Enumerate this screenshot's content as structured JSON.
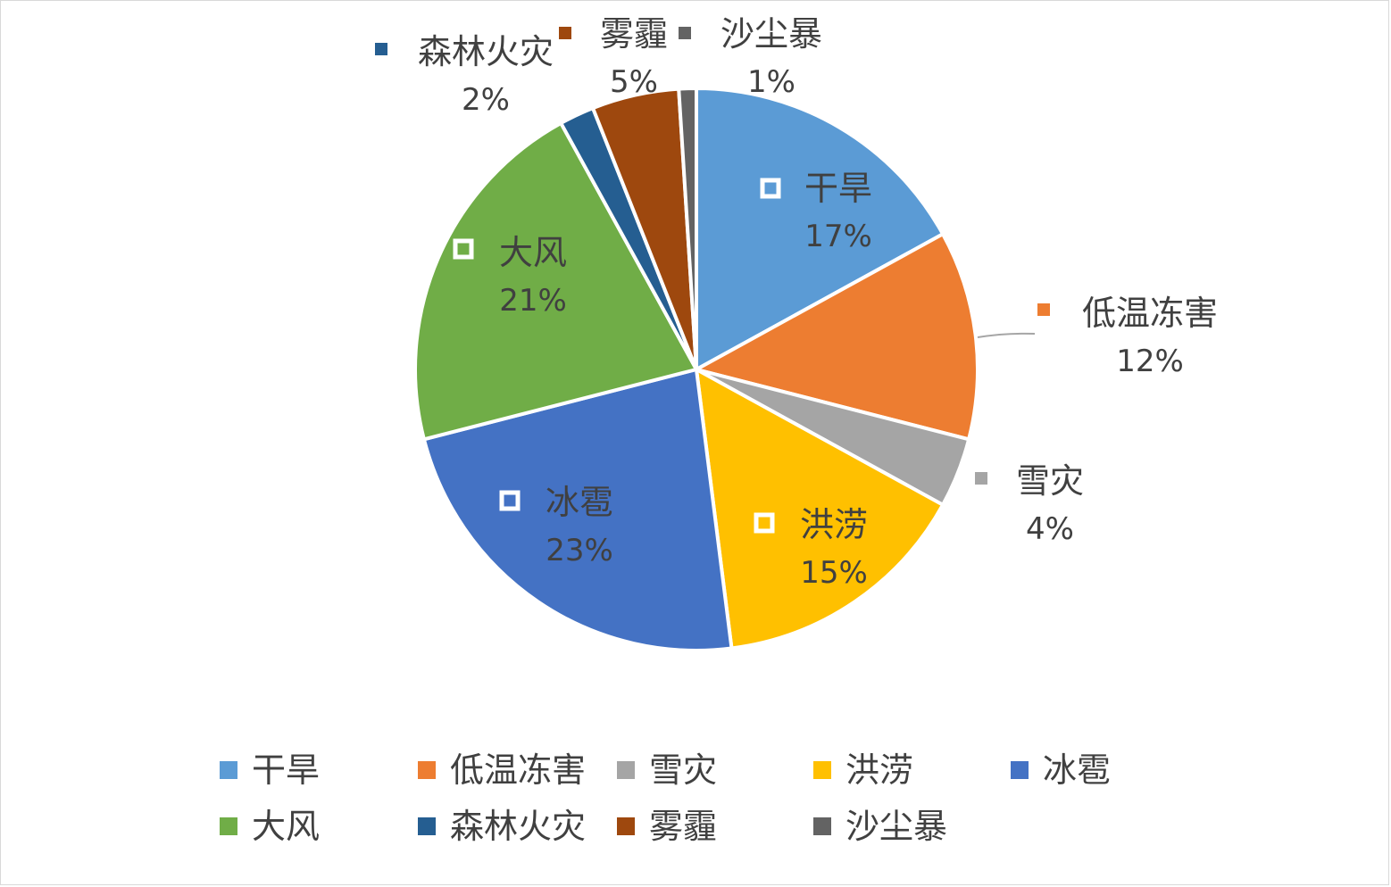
{
  "chart_data": {
    "type": "pie",
    "title": "",
    "categories": [
      "干旱",
      "低温冻害",
      "雪灾",
      "洪涝",
      "冰雹",
      "大风",
      "森林火灾",
      "雾霾",
      "沙尘暴"
    ],
    "values": [
      17,
      12,
      4,
      15,
      23,
      21,
      2,
      5,
      1
    ],
    "labels": [
      "17%",
      "12%",
      "4%",
      "15%",
      "23%",
      "21%",
      "2%",
      "5%",
      "1%"
    ],
    "colors": [
      "#5b9bd5",
      "#ed7d31",
      "#a5a5a5",
      "#ffc000",
      "#4472c4",
      "#70ad47",
      "#255e91",
      "#9e480e",
      "#636363"
    ],
    "legend": [
      "干旱",
      "低温冻害",
      "雪灾",
      "洪涝",
      "冰雹",
      "大风",
      "森林火灾",
      "雾霾",
      "沙尘暴"
    ],
    "legend_position": "bottom",
    "data_labels": "category-and-percent"
  }
}
